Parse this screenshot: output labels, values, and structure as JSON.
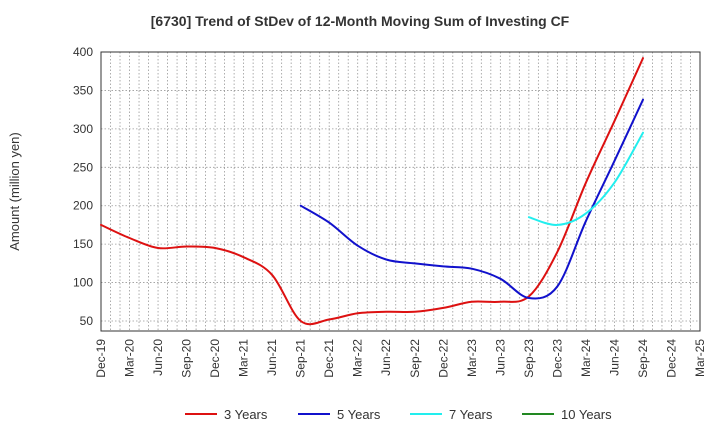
{
  "chart_data": {
    "type": "line",
    "title": "[6730]  Trend of StDev of 12-Month Moving Sum of Investing CF",
    "xlabel": "",
    "ylabel": "Amount (million yen)",
    "ylim": [
      37,
      400
    ],
    "yticks": [
      50,
      100,
      150,
      200,
      250,
      300,
      350,
      400
    ],
    "grid": true,
    "legend_position": "bottom",
    "categories": [
      "Dec-19",
      "Mar-20",
      "Jun-20",
      "Sep-20",
      "Dec-20",
      "Mar-21",
      "Jun-21",
      "Sep-21",
      "Dec-21",
      "Mar-22",
      "Jun-22",
      "Sep-22",
      "Dec-22",
      "Mar-23",
      "Jun-23",
      "Sep-23",
      "Dec-23",
      "Mar-24",
      "Jun-24",
      "Sep-24",
      "Dec-24",
      "Mar-25"
    ],
    "series": [
      {
        "name": "3 Years",
        "color": "#dd1111",
        "values": [
          175,
          158,
          145,
          147,
          145,
          133,
          110,
          50,
          52,
          60,
          62,
          62,
          67,
          75,
          75,
          82,
          140,
          230,
          310,
          392,
          null,
          null
        ]
      },
      {
        "name": "5 Years",
        "color": "#1111cc",
        "values": [
          null,
          null,
          null,
          null,
          null,
          null,
          null,
          200,
          178,
          148,
          130,
          125,
          121,
          118,
          105,
          80,
          95,
          180,
          258,
          338,
          null,
          null
        ]
      },
      {
        "name": "7 Years",
        "color": "#22eeee",
        "values": [
          null,
          null,
          null,
          null,
          null,
          null,
          null,
          null,
          null,
          null,
          null,
          null,
          null,
          null,
          null,
          185,
          175,
          190,
          230,
          295,
          null,
          null
        ]
      },
      {
        "name": "10 Years",
        "color": "#228822",
        "values": [
          null,
          null,
          null,
          null,
          null,
          null,
          null,
          null,
          null,
          null,
          null,
          null,
          null,
          null,
          null,
          null,
          null,
          null,
          null,
          null,
          null,
          null
        ]
      }
    ]
  }
}
